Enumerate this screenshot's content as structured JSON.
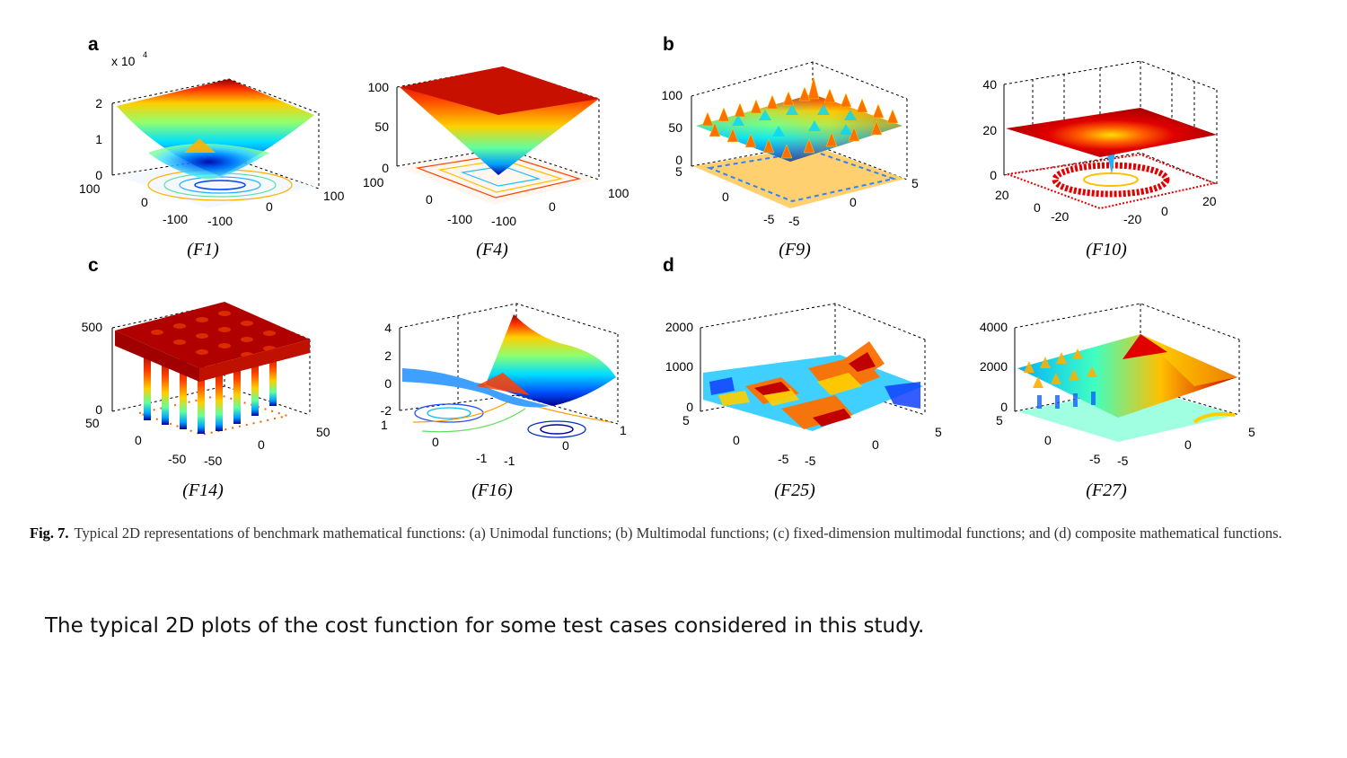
{
  "caption": {
    "figure_number": "Fig. 7.",
    "text": "Typical 2D representations of benchmark mathematical functions: (a) Unimodal functions; (b) Multimodal functions; (c) fixed-dimension multimodal functions; and (d) composite mathematical functions."
  },
  "note": "The typical 2D plots of the cost function for some test cases considered in this study.",
  "chart_data": [
    {
      "type": "surface",
      "panel": "a",
      "label": "(F1)",
      "z_ticks": [
        "0",
        "1",
        "2"
      ],
      "z_multiplier": "x 10",
      "z_exponent": "4",
      "x_ticks": [
        "-100",
        "0",
        "100"
      ],
      "y_ticks": [
        "100",
        "0",
        "-100"
      ],
      "shape": "bowl",
      "contour": true
    },
    {
      "type": "surface",
      "panel": "a",
      "label": "(F4)",
      "z_ticks": [
        "0",
        "50",
        "100"
      ],
      "x_ticks": [
        "-100",
        "0",
        "100"
      ],
      "y_ticks": [
        "100",
        "0",
        "-100"
      ],
      "shape": "inverted-pyramid",
      "contour": true
    },
    {
      "type": "surface",
      "panel": "b",
      "label": "(F9)",
      "z_ticks": [
        "0",
        "50",
        "100"
      ],
      "x_ticks": [
        "-5",
        "0",
        "5"
      ],
      "y_ticks": [
        "5",
        "0",
        "-5"
      ],
      "shape": "egg-crate",
      "contour": true
    },
    {
      "type": "surface",
      "panel": "b",
      "label": "(F10)",
      "z_ticks": [
        "0",
        "20",
        "40"
      ],
      "x_ticks": [
        "-20",
        "0",
        "20"
      ],
      "y_ticks": [
        "20",
        "0",
        "-20"
      ],
      "shape": "flat-with-central-well",
      "contour": true
    },
    {
      "type": "surface",
      "panel": "c",
      "label": "(F14)",
      "z_ticks": [
        "0",
        "500"
      ],
      "x_ticks": [
        "-50",
        "0",
        "50"
      ],
      "y_ticks": [
        "50",
        "0",
        "-50"
      ],
      "shape": "plateau-with-spikes",
      "contour": true
    },
    {
      "type": "surface",
      "panel": "c",
      "label": "(F16)",
      "z_ticks": [
        "-2",
        "0",
        "2",
        "4"
      ],
      "x_ticks": [
        "-1",
        "0",
        "1"
      ],
      "y_ticks": [
        "1",
        "0",
        "-1"
      ],
      "shape": "saddle",
      "contour": true
    },
    {
      "type": "surface",
      "panel": "d",
      "label": "(F25)",
      "z_ticks": [
        "0",
        "1000",
        "2000"
      ],
      "x_ticks": [
        "-5",
        "0",
        "5"
      ],
      "y_ticks": [
        "5",
        "0",
        "-5"
      ],
      "shape": "rugged",
      "contour": true
    },
    {
      "type": "surface",
      "panel": "d",
      "label": "(F27)",
      "z_ticks": [
        "0",
        "2000",
        "4000"
      ],
      "x_ticks": [
        "-5",
        "0",
        "5"
      ],
      "y_ticks": [
        "5",
        "0",
        "-5"
      ],
      "shape": "ramp",
      "contour": true
    }
  ]
}
